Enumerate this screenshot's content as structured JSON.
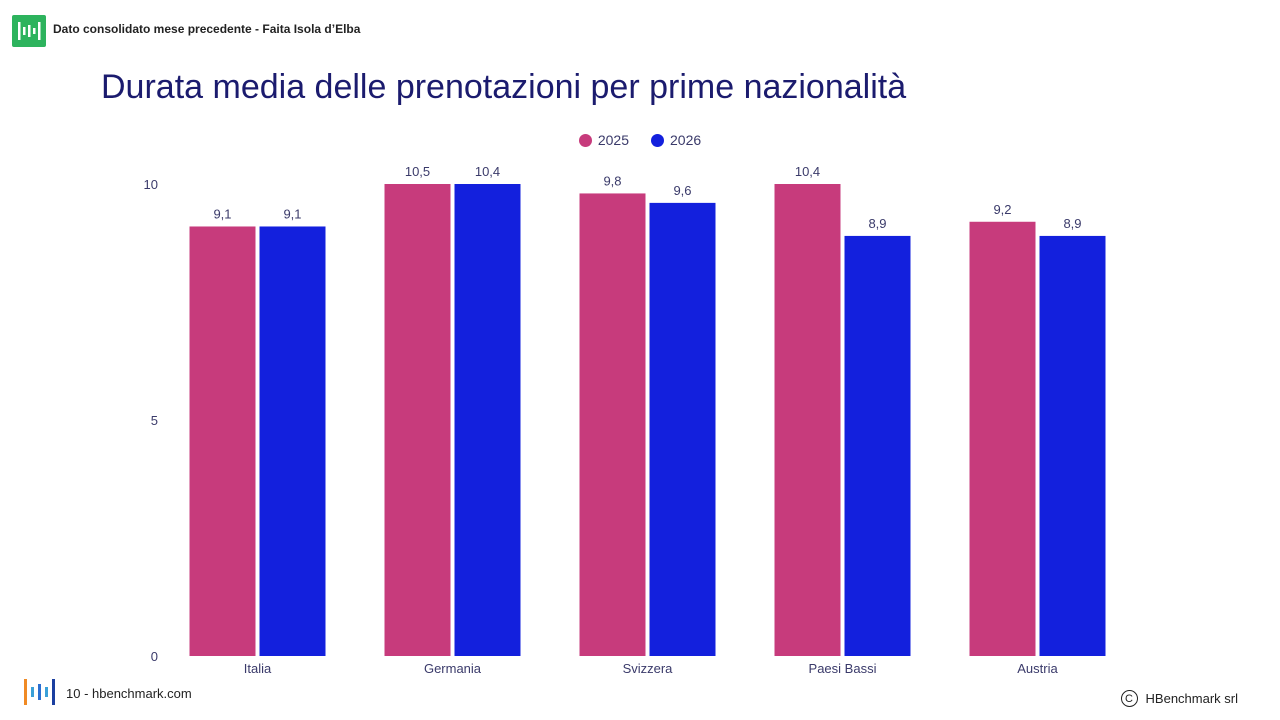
{
  "header": {
    "text": "Dato consolidato mese precedente - Faita Isola d’Elba"
  },
  "title": "Durata media delle prenotazioni per prime nazionalità",
  "footer": {
    "page_text": "10 - hbenchmark.com",
    "copyright_symbol": "C",
    "copyright": "HBenchmark srl"
  },
  "colors": {
    "series_2025": "#c73b7c",
    "series_2026": "#1320dd",
    "title": "#1b1b6e",
    "logo_green": "#2db35d"
  },
  "icons": {
    "top_logo": "hbenchmark-logo-icon",
    "footer_logo": "hbenchmark-gradient-logo-icon",
    "copyright": "copyright-icon"
  },
  "chart_data": {
    "type": "bar",
    "categories": [
      "Italia",
      "Germania",
      "Svizzera",
      "Paesi Bassi",
      "Austria"
    ],
    "series": [
      {
        "name": "2025",
        "values": [
          9.1,
          10.5,
          9.8,
          10.4,
          9.2
        ],
        "labels": [
          "9,1",
          "10,5",
          "9,8",
          "10,4",
          "9,2"
        ]
      },
      {
        "name": "2026",
        "values": [
          9.1,
          10.4,
          9.6,
          8.9,
          8.9
        ],
        "labels": [
          "9,1",
          "10,4",
          "9,6",
          "8,9",
          "8,9"
        ]
      }
    ],
    "ylim": [
      0,
      10
    ],
    "yticks": [
      "0",
      "5",
      "10"
    ],
    "legend_position": "top-center",
    "grid": false
  }
}
